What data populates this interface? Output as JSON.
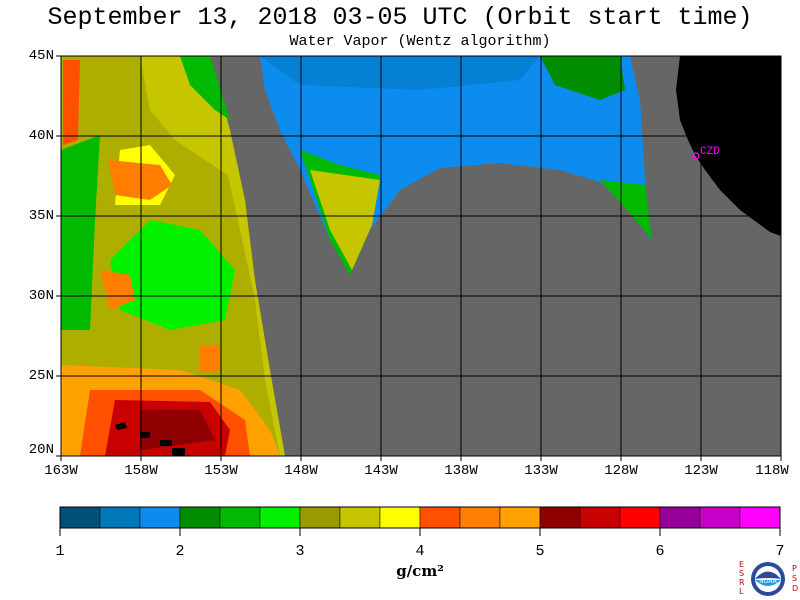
{
  "header": {
    "title": "September 13, 2018  03-05 UTC  (Orbit start time)",
    "subtitle": "Water Vapor (Wentz algorithm)"
  },
  "map": {
    "lat_labels": [
      "45N",
      "40N",
      "35N",
      "30N",
      "25N",
      "20N"
    ],
    "lon_labels": [
      "163W",
      "158W",
      "153W",
      "148W",
      "143W",
      "138W",
      "133W",
      "128W",
      "123W",
      "118W"
    ],
    "lat_range": [
      20,
      45
    ],
    "lon_range": [
      -163,
      -118
    ],
    "colors": {
      "land": "#000000",
      "no_data": "#666666",
      "gridlines": "#000000",
      "annotation": "#ff00ff"
    },
    "annotations": [
      {
        "text": "CZD"
      }
    ]
  },
  "colorbar": {
    "colors": [
      "#00507a",
      "#0077b9",
      "#0d8cef",
      "#008e00",
      "#00b900",
      "#00f000",
      "#9a9a00",
      "#c6c600",
      "#ffff00",
      "#ff5000",
      "#ff7e00",
      "#ffa100",
      "#8e0000",
      "#c80000",
      "#ff0000",
      "#96009a",
      "#c800c8",
      "#ff00ff"
    ],
    "tick_labels": [
      "1",
      "2",
      "3",
      "4",
      "5",
      "6",
      "7"
    ],
    "unit": "g/cm²"
  },
  "logo": {
    "left_letters": [
      "E",
      "S",
      "R",
      "L"
    ],
    "right_letters": [
      "P",
      "S",
      "D"
    ],
    "center_text": "NOAA"
  }
}
